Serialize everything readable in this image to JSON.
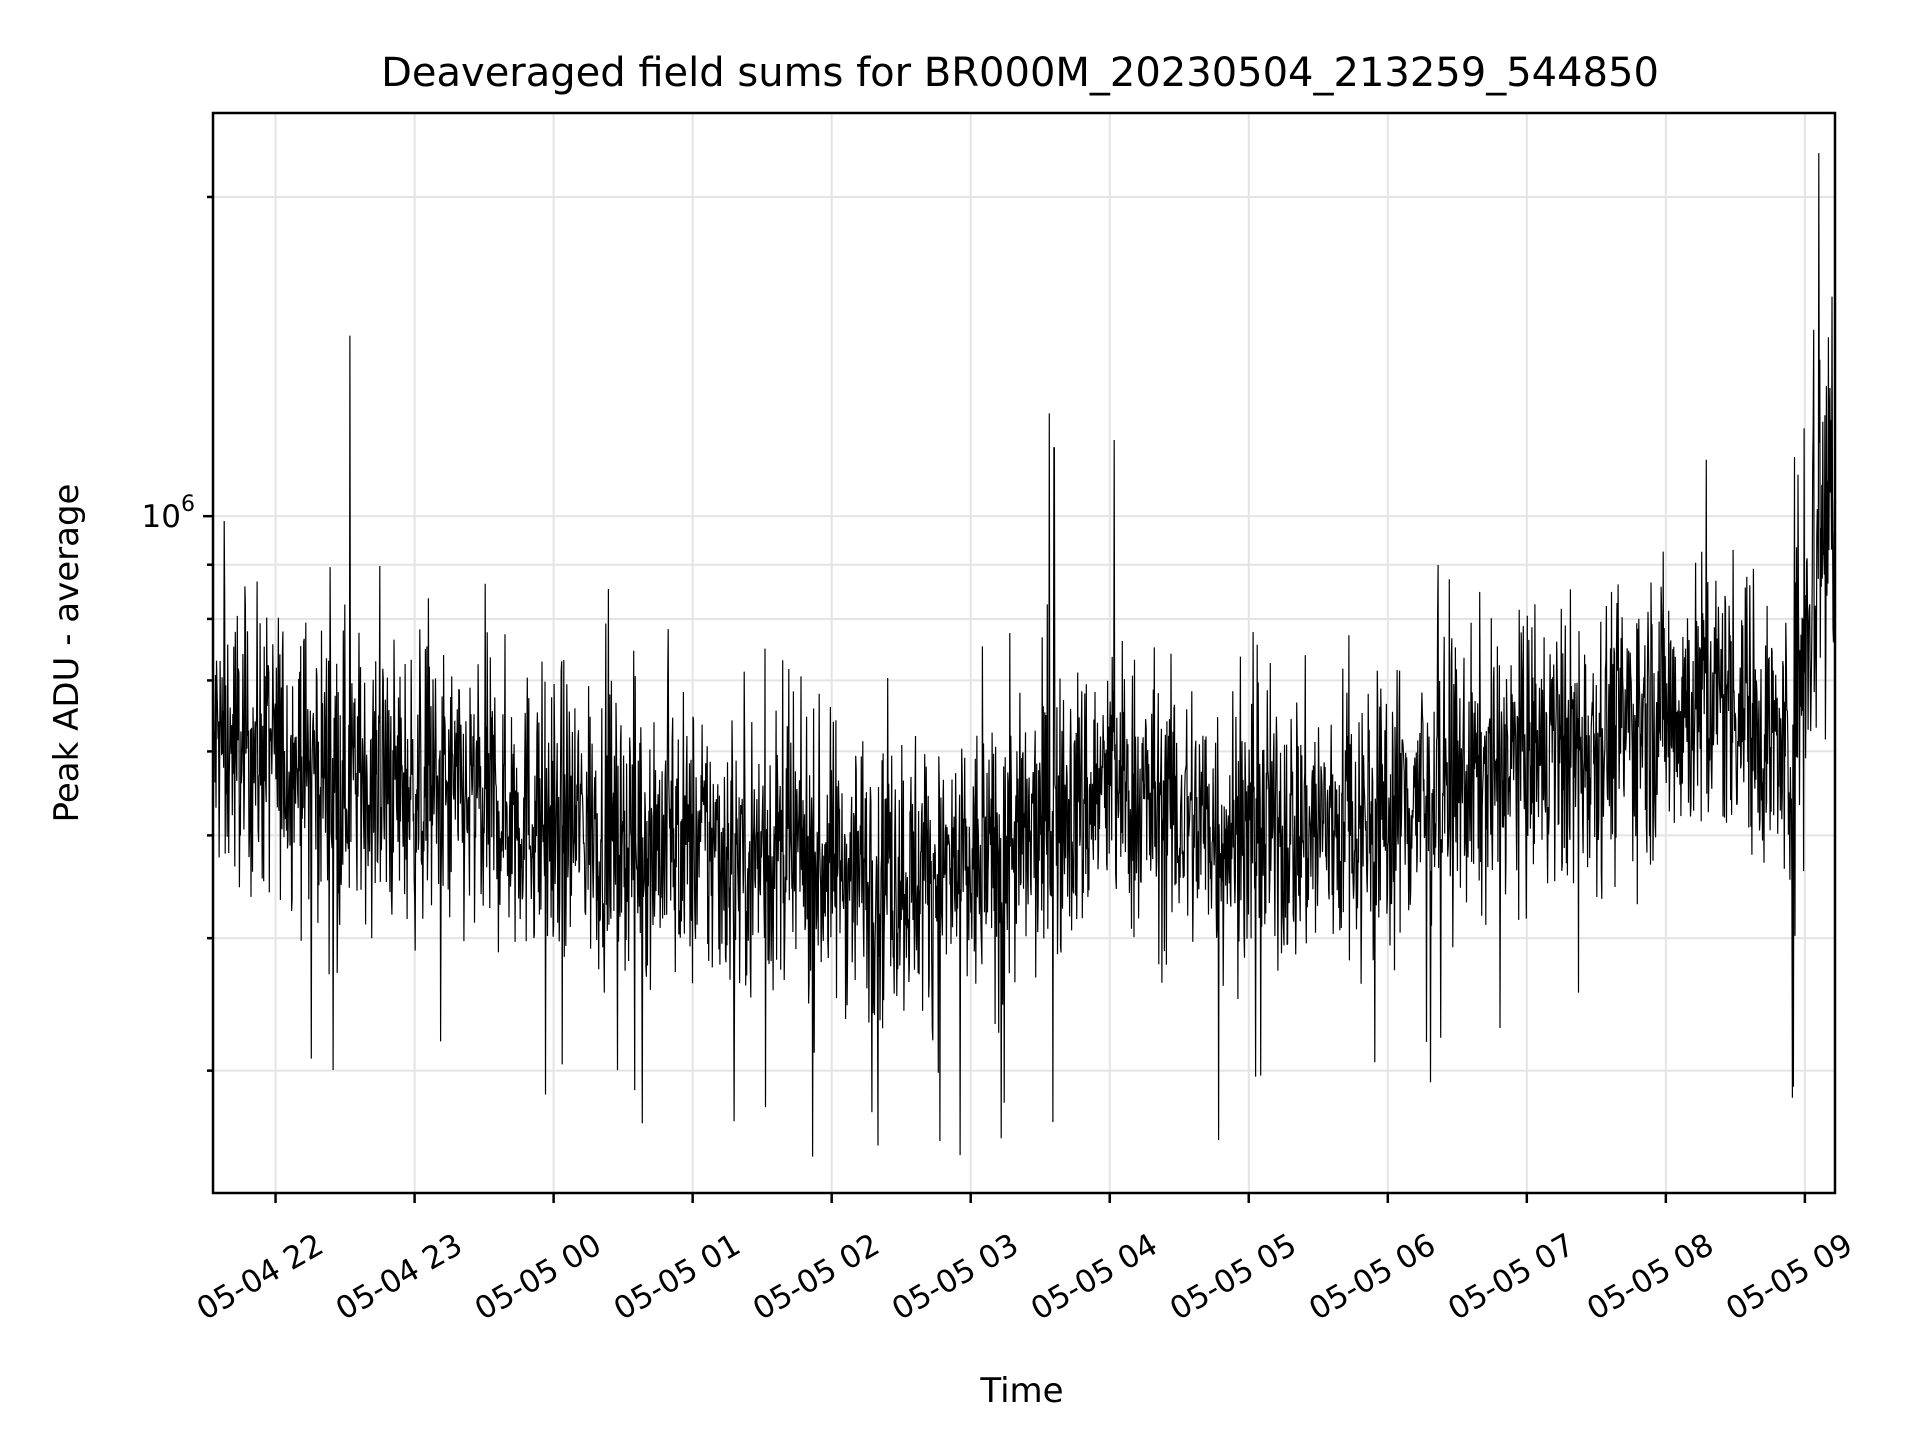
{
  "chart_data": {
    "type": "line",
    "title": "Deaveraged field sums for BR000M_20230504_213259_544850",
    "xlabel": "Time",
    "ylabel": "Peak ADU - average",
    "y_scale": "log",
    "ylim": [
      230000,
      2400000
    ],
    "x_range": [
      "2023-05-04 21:33",
      "2023-05-05 09:13"
    ],
    "x_ticks": [
      {
        "label": "05-04 22",
        "hour": 22
      },
      {
        "label": "05-04 23",
        "hour": 23
      },
      {
        "label": "05-05 00",
        "hour": 24
      },
      {
        "label": "05-05 01",
        "hour": 25
      },
      {
        "label": "05-05 02",
        "hour": 26
      },
      {
        "label": "05-05 03",
        "hour": 27
      },
      {
        "label": "05-05 04",
        "hour": 28
      },
      {
        "label": "05-05 05",
        "hour": 29
      },
      {
        "label": "05-05 06",
        "hour": 30
      },
      {
        "label": "05-05 07",
        "hour": 31
      },
      {
        "label": "05-05 08",
        "hour": 32
      },
      {
        "label": "05-05 09",
        "hour": 33
      }
    ],
    "y_major_ticks": [
      {
        "label": "10",
        "exp": "6",
        "value": 1000000
      }
    ],
    "y_minor_ticks": [
      300000,
      400000,
      500000,
      600000,
      700000,
      800000,
      900000,
      2000000
    ],
    "grid": true,
    "legend": "none",
    "series_color": "#000000",
    "series": [
      {
        "x": [
          "2023-05-04 21:33",
          "2023-05-04 22:00",
          "2023-05-04 22:30",
          "2023-05-04 23:00",
          "2023-05-04 23:30",
          "2023-05-05 00:00",
          "2023-05-05 00:30",
          "2023-05-05 01:00",
          "2023-05-05 01:30",
          "2023-05-05 02:00",
          "2023-05-05 02:30",
          "2023-05-05 03:00",
          "2023-05-05 03:30",
          "2023-05-05 04:00",
          "2023-05-05 04:30",
          "2023-05-05 05:00",
          "2023-05-05 05:30",
          "2023-05-05 06:00",
          "2023-05-05 06:30",
          "2023-05-05 07:00",
          "2023-05-05 07:30",
          "2023-05-05 08:00",
          "2023-05-05 08:30",
          "2023-05-05 08:55",
          "2023-05-05 09:00",
          "2023-05-05 09:13"
        ],
        "y": [
          610000,
          600000,
          570000,
          550000,
          535000,
          520000,
          505000,
          490000,
          480000,
          470000,
          460000,
          460000,
          500000,
          560000,
          520000,
          500000,
          510000,
          530000,
          560000,
          590000,
          620000,
          660000,
          680000,
          580000,
          850000,
          1100000
        ],
        "spikes": [
          {
            "x": "2023-05-04 22:32",
            "y": 1480000
          },
          {
            "x": "2023-05-05 03:34",
            "y": 1250000
          },
          {
            "x": "2023-05-05 03:36",
            "y": 1160000
          },
          {
            "x": "2023-05-05 04:02",
            "y": 1180000
          },
          {
            "x": "2023-05-05 02:20",
            "y": 255000
          },
          {
            "x": "2023-05-05 04:47",
            "y": 258000
          },
          {
            "x": "2023-05-05 09:06",
            "y": 2200000
          }
        ]
      }
    ]
  }
}
